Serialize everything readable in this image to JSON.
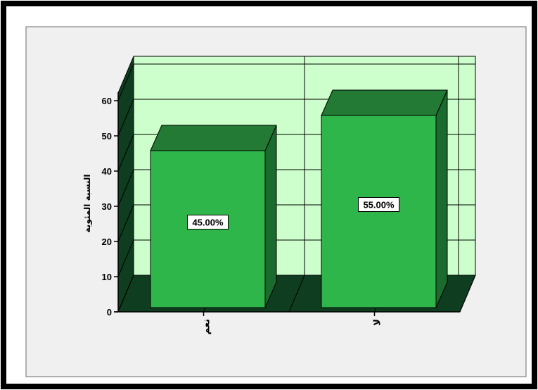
{
  "chart_data": {
    "type": "bar",
    "categories": [
      "نعم",
      "لا"
    ],
    "values": [
      45.0,
      55.0
    ],
    "data_labels": [
      "45.00%",
      "55.00%"
    ],
    "title": "",
    "xlabel": "",
    "ylabel": "النسبة المئوية",
    "ylim": [
      0,
      60
    ],
    "yticks": [
      0,
      10,
      20,
      30,
      40,
      50,
      60
    ],
    "grid": true,
    "style": "3d",
    "colors": {
      "bar_front": "#2fb64a",
      "bar_side": "#1c6b2e",
      "bar_top": "#227a35",
      "plot_back": "#ccffcc",
      "floor": "#0f3d1f",
      "outer_border": "#000000",
      "inner_panel": "#f0f0f0"
    }
  }
}
